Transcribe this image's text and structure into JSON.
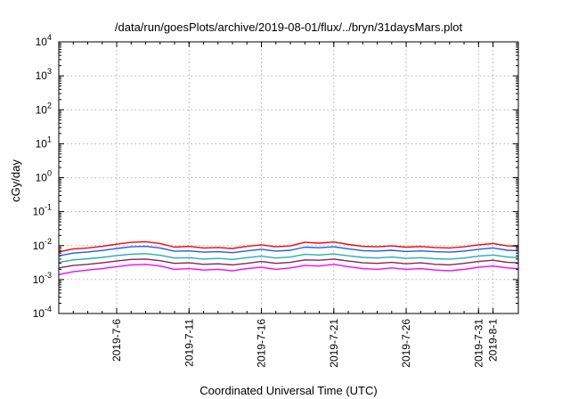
{
  "chart_data": {
    "type": "line",
    "title": "/data/run/goesPlots/archive/2019-08-01/flux/../bryn/31daysMars.plot",
    "xlabel": "Coordinated Universal Time (UTC)",
    "ylabel": "cGy/day",
    "yscale": "log",
    "ylim": [
      0.0001,
      10000
    ],
    "xlim": [
      "2019-07-02T00:00",
      "2019-08-02T18:00"
    ],
    "grid": true,
    "legend": "none",
    "y_ticks": [
      {
        "base": "10",
        "exp": "4"
      },
      {
        "base": "10",
        "exp": "3"
      },
      {
        "base": "10",
        "exp": "2"
      },
      {
        "base": "10",
        "exp": "1"
      },
      {
        "base": "10",
        "exp": "0"
      },
      {
        "base": "10",
        "exp": "-1"
      },
      {
        "base": "10",
        "exp": "-2"
      },
      {
        "base": "10",
        "exp": "-3"
      },
      {
        "base": "10",
        "exp": "-4"
      }
    ],
    "x_ticks": [
      "2019-7-6",
      "2019-7-11",
      "2019-7-16",
      "2019-7-21",
      "2019-7-26",
      "2019-7-31",
      "2019-8-1"
    ],
    "x_tick_dates": [
      "2019-07-06",
      "2019-07-11",
      "2019-07-16",
      "2019-07-21",
      "2019-07-26",
      "2019-07-31",
      "2019-08-01"
    ],
    "series": [
      {
        "color": "#ff0000",
        "x": [
          "2019-07-02T00:00",
          "2019-07-03T00:00",
          "2019-07-04T00:00",
          "2019-07-05T00:00",
          "2019-07-06T00:00",
          "2019-07-07T00:00",
          "2019-07-08T00:00",
          "2019-07-09T00:00",
          "2019-07-10T00:00",
          "2019-07-11T00:00",
          "2019-07-12T00:00",
          "2019-07-13T00:00",
          "2019-07-14T00:00",
          "2019-07-15T00:00",
          "2019-07-16T00:00",
          "2019-07-17T00:00",
          "2019-07-18T00:00",
          "2019-07-19T00:00",
          "2019-07-20T00:00",
          "2019-07-21T00:00",
          "2019-07-22T00:00",
          "2019-07-23T00:00",
          "2019-07-24T00:00",
          "2019-07-25T00:00",
          "2019-07-26T00:00",
          "2019-07-27T00:00",
          "2019-07-28T00:00",
          "2019-07-29T00:00",
          "2019-07-30T00:00",
          "2019-07-31T00:00",
          "2019-08-01T00:00",
          "2019-08-02T00:00",
          "2019-08-02T18:00"
        ],
        "values": [
          0.0065,
          0.008,
          0.0085,
          0.0095,
          0.011,
          0.0125,
          0.013,
          0.0115,
          0.009,
          0.0095,
          0.0085,
          0.0088,
          0.0082,
          0.0095,
          0.0105,
          0.0092,
          0.0098,
          0.0125,
          0.0118,
          0.0128,
          0.0108,
          0.0095,
          0.0092,
          0.0098,
          0.009,
          0.0094,
          0.0088,
          0.0085,
          0.0092,
          0.0105,
          0.0115,
          0.0098,
          0.0095
        ]
      },
      {
        "color": "#1e5aff",
        "x": [
          "2019-07-02T00:00",
          "2019-07-03T00:00",
          "2019-07-04T00:00",
          "2019-07-05T00:00",
          "2019-07-06T00:00",
          "2019-07-07T00:00",
          "2019-07-08T00:00",
          "2019-07-09T00:00",
          "2019-07-10T00:00",
          "2019-07-11T00:00",
          "2019-07-12T00:00",
          "2019-07-13T00:00",
          "2019-07-14T00:00",
          "2019-07-15T00:00",
          "2019-07-16T00:00",
          "2019-07-17T00:00",
          "2019-07-18T00:00",
          "2019-07-19T00:00",
          "2019-07-20T00:00",
          "2019-07-21T00:00",
          "2019-07-22T00:00",
          "2019-07-23T00:00",
          "2019-07-24T00:00",
          "2019-07-25T00:00",
          "2019-07-26T00:00",
          "2019-07-27T00:00",
          "2019-07-28T00:00",
          "2019-07-29T00:00",
          "2019-07-30T00:00",
          "2019-07-31T00:00",
          "2019-08-01T00:00",
          "2019-08-02T00:00",
          "2019-08-02T18:00"
        ],
        "values": [
          0.005,
          0.006,
          0.0065,
          0.0072,
          0.0082,
          0.0092,
          0.0095,
          0.0085,
          0.0068,
          0.007,
          0.0064,
          0.0066,
          0.0062,
          0.007,
          0.0078,
          0.0069,
          0.0073,
          0.009,
          0.0086,
          0.0092,
          0.008,
          0.0071,
          0.0069,
          0.0073,
          0.0067,
          0.007,
          0.0066,
          0.0064,
          0.0069,
          0.0078,
          0.0085,
          0.0073,
          0.0071
        ]
      },
      {
        "color": "#20b2aa",
        "x": [
          "2019-07-02T00:00",
          "2019-07-03T00:00",
          "2019-07-04T00:00",
          "2019-07-05T00:00",
          "2019-07-06T00:00",
          "2019-07-07T00:00",
          "2019-07-08T00:00",
          "2019-07-09T00:00",
          "2019-07-10T00:00",
          "2019-07-11T00:00",
          "2019-07-12T00:00",
          "2019-07-13T00:00",
          "2019-07-14T00:00",
          "2019-07-15T00:00",
          "2019-07-16T00:00",
          "2019-07-17T00:00",
          "2019-07-18T00:00",
          "2019-07-19T00:00",
          "2019-07-20T00:00",
          "2019-07-21T00:00",
          "2019-07-22T00:00",
          "2019-07-23T00:00",
          "2019-07-24T00:00",
          "2019-07-25T00:00",
          "2019-07-26T00:00",
          "2019-07-27T00:00",
          "2019-07-28T00:00",
          "2019-07-29T00:00",
          "2019-07-30T00:00",
          "2019-07-31T00:00",
          "2019-08-01T00:00",
          "2019-08-02T00:00",
          "2019-08-02T18:00"
        ],
        "values": [
          0.0032,
          0.0038,
          0.0041,
          0.0045,
          0.0051,
          0.0056,
          0.0058,
          0.0052,
          0.0043,
          0.0044,
          0.004,
          0.0042,
          0.0039,
          0.0044,
          0.0049,
          0.0043,
          0.0046,
          0.0055,
          0.0053,
          0.0057,
          0.005,
          0.0045,
          0.0043,
          0.0046,
          0.0042,
          0.0044,
          0.0041,
          0.004,
          0.0043,
          0.0049,
          0.0053,
          0.0046,
          0.0044
        ]
      },
      {
        "color": "#8b2252",
        "x": [
          "2019-07-02T00:00",
          "2019-07-03T00:00",
          "2019-07-04T00:00",
          "2019-07-05T00:00",
          "2019-07-06T00:00",
          "2019-07-07T00:00",
          "2019-07-08T00:00",
          "2019-07-09T00:00",
          "2019-07-10T00:00",
          "2019-07-11T00:00",
          "2019-07-12T00:00",
          "2019-07-13T00:00",
          "2019-07-14T00:00",
          "2019-07-15T00:00",
          "2019-07-16T00:00",
          "2019-07-17T00:00",
          "2019-07-18T00:00",
          "2019-07-19T00:00",
          "2019-07-20T00:00",
          "2019-07-21T00:00",
          "2019-07-22T00:00",
          "2019-07-23T00:00",
          "2019-07-24T00:00",
          "2019-07-25T00:00",
          "2019-07-26T00:00",
          "2019-07-27T00:00",
          "2019-07-28T00:00",
          "2019-07-29T00:00",
          "2019-07-30T00:00",
          "2019-07-31T00:00",
          "2019-08-01T00:00",
          "2019-08-02T00:00",
          "2019-08-02T18:00"
        ],
        "values": [
          0.0022,
          0.0026,
          0.0028,
          0.0031,
          0.0035,
          0.0039,
          0.004,
          0.0036,
          0.003,
          0.0031,
          0.0028,
          0.0029,
          0.0027,
          0.003,
          0.0034,
          0.003,
          0.0032,
          0.0038,
          0.0037,
          0.004,
          0.0035,
          0.0031,
          0.003,
          0.0032,
          0.0029,
          0.0031,
          0.0028,
          0.0027,
          0.003,
          0.0034,
          0.0037,
          0.0032,
          0.0031
        ]
      },
      {
        "color": "#ff00ff",
        "x": [
          "2019-07-02T00:00",
          "2019-07-03T00:00",
          "2019-07-04T00:00",
          "2019-07-05T00:00",
          "2019-07-06T00:00",
          "2019-07-07T00:00",
          "2019-07-08T00:00",
          "2019-07-09T00:00",
          "2019-07-10T00:00",
          "2019-07-11T00:00",
          "2019-07-12T00:00",
          "2019-07-13T00:00",
          "2019-07-14T00:00",
          "2019-07-15T00:00",
          "2019-07-16T00:00",
          "2019-07-17T00:00",
          "2019-07-18T00:00",
          "2019-07-19T00:00",
          "2019-07-20T00:00",
          "2019-07-21T00:00",
          "2019-07-22T00:00",
          "2019-07-23T00:00",
          "2019-07-24T00:00",
          "2019-07-25T00:00",
          "2019-07-26T00:00",
          "2019-07-27T00:00",
          "2019-07-28T00:00",
          "2019-07-29T00:00",
          "2019-07-30T00:00",
          "2019-07-31T00:00",
          "2019-08-01T00:00",
          "2019-08-02T00:00",
          "2019-08-02T18:00"
        ],
        "values": [
          0.0014,
          0.0017,
          0.0019,
          0.0021,
          0.0024,
          0.0027,
          0.0028,
          0.0025,
          0.002,
          0.0021,
          0.0019,
          0.002,
          0.0018,
          0.0021,
          0.0023,
          0.002,
          0.0022,
          0.0026,
          0.0025,
          0.0028,
          0.0024,
          0.0021,
          0.002,
          0.0022,
          0.002,
          0.0021,
          0.0019,
          0.0018,
          0.002,
          0.0023,
          0.0025,
          0.0022,
          0.0021
        ]
      }
    ]
  }
}
